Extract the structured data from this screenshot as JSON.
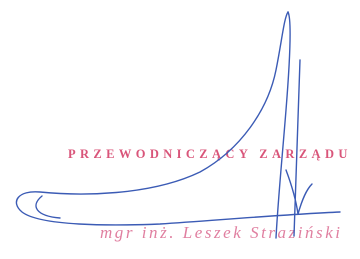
{
  "stamp": {
    "title": "PRZEWODNICZĄCY ZARZĄDU",
    "name": "mgr inż. Leszek Straziński"
  }
}
